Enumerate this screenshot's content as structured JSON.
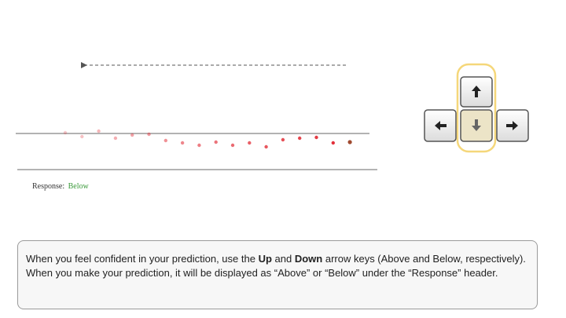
{
  "response": {
    "label": "Response:",
    "value": "Below"
  },
  "instructions": {
    "part1": "When you feel confident in your prediction, use the ",
    "key_up": "Up",
    "part2": " and ",
    "key_down": "Down",
    "part3": " arrow keys (Above and Below, respectively). When you make your prediction, it will be displayed as “Above” or “Below” under the “Response” header."
  },
  "keys": {
    "up_icon": "arrow-up-icon",
    "down_icon": "arrow-down-icon",
    "left_icon": "arrow-left-icon",
    "right_icon": "arrow-right-icon",
    "highlighted": "down"
  },
  "colors": {
    "highlight": "#f5d77a",
    "pressed_key": "#ece4c7",
    "response_value": "#3a9a3a",
    "last_point": "#a04a30"
  },
  "trajectory": {
    "direction": "left",
    "points_count": 18
  }
}
